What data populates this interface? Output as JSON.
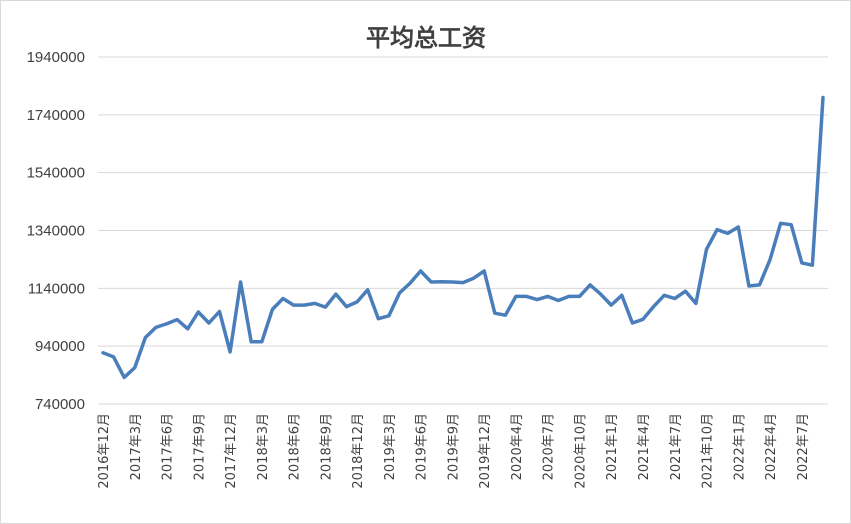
{
  "chart_data": {
    "type": "line",
    "title": "平均总工资",
    "xlabel": "",
    "ylabel": "",
    "ylim": [
      740000,
      1940000
    ],
    "yticks": [
      740000,
      940000,
      1140000,
      1340000,
      1540000,
      1740000,
      1940000
    ],
    "ytick_labels": [
      "740000",
      "940000",
      "1140000",
      "1340000",
      "1540000",
      "1740000",
      "1940000"
    ],
    "grid": true,
    "legend": "none",
    "line_color": "#4a7ebb",
    "xtick_labels": [
      "2016年12月",
      "2017年3月",
      "2017年6月",
      "2017年9月",
      "2017年12月",
      "2018年3月",
      "2018年6月",
      "2018年9月",
      "2018年12月",
      "2019年3月",
      "2019年6月",
      "2019年9月",
      "2019年12月",
      "2020年4月",
      "2020年7月",
      "2020年10月",
      "2021年1月",
      "2021年4月",
      "2021年7月",
      "2021年10月",
      "2022年1月",
      "2022年4月",
      "2022年7月"
    ],
    "series": [
      {
        "values": [
          917000,
          903000,
          832000,
          866000,
          970000,
          1005000,
          1017000,
          1032000,
          1000000,
          1058000,
          1020000,
          1060000,
          920000,
          1162000,
          955000,
          955000,
          1067000,
          1105000,
          1082000,
          1082000,
          1088000,
          1075000,
          1120000,
          1077000,
          1093000,
          1135000,
          1035000,
          1045000,
          1124000,
          1158000,
          1200000,
          1162000,
          1163000,
          1162000,
          1160000,
          1175000,
          1200000,
          1054000,
          1047000,
          1112000,
          1112000,
          1101000,
          1112000,
          1098000,
          1112000,
          1112000,
          1152000,
          1120000,
          1082000,
          1116000,
          1020000,
          1033000,
          1077000,
          1116000,
          1105000,
          1130000,
          1088000,
          1275000,
          1343000,
          1330000,
          1352000,
          1148000,
          1152000,
          1240000,
          1365000,
          1360000,
          1228000,
          1220000,
          1800000
        ]
      }
    ]
  }
}
